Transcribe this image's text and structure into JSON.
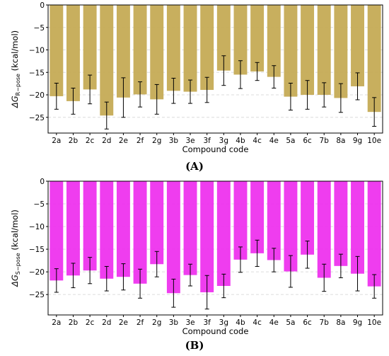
{
  "chart_data": [
    {
      "type": "bar",
      "panel_label": "(A)",
      "xlabel": "Compound code",
      "ylabel": "ΔG",
      "ylabel_sub": "R−pose",
      "ylabel_unit": "(kcal/mol)",
      "ylim": [
        -28.5,
        0
      ],
      "yticks": [
        0,
        -5,
        -10,
        -15,
        -20,
        -25
      ],
      "grid": true,
      "bar_color": "#c5ab55",
      "categories": [
        "2a",
        "2b",
        "2c",
        "2d",
        "2e",
        "2f",
        "2g",
        "3b",
        "3e",
        "3f",
        "3g",
        "4b",
        "4c",
        "4e",
        "5a",
        "6c",
        "7b",
        "8a",
        "9g",
        "10e"
      ],
      "values": [
        -20.3,
        -21.4,
        -18.8,
        -24.6,
        -20.6,
        -19.9,
        -21.0,
        -19.1,
        -19.3,
        -18.9,
        -14.6,
        -15.5,
        -14.8,
        -16.0,
        -20.4,
        -20.0,
        -20.0,
        -20.7,
        -18.1,
        -23.8
      ],
      "errors": [
        2.9,
        2.9,
        3.2,
        3.0,
        4.4,
        2.8,
        3.3,
        2.8,
        2.6,
        2.8,
        3.3,
        3.1,
        2.0,
        2.5,
        3.0,
        3.2,
        2.7,
        3.2,
        3.0,
        3.2
      ]
    },
    {
      "type": "bar",
      "panel_label": "(B)",
      "xlabel": "Compound code",
      "ylabel": "ΔG",
      "ylabel_sub": "S−pose",
      "ylabel_unit": "(kcal/mol)",
      "ylim": [
        -29.5,
        0
      ],
      "yticks": [
        0,
        -5,
        -10,
        -15,
        -20,
        -25
      ],
      "grid": true,
      "bar_color": "#ee33ee",
      "categories": [
        "2a",
        "2b",
        "2c",
        "2d",
        "2e",
        "2f",
        "2g",
        "3b",
        "3e",
        "3f",
        "3g",
        "4b",
        "4c",
        "4e",
        "5a",
        "6c",
        "7b",
        "8a",
        "9g",
        "10e"
      ],
      "values": [
        -21.9,
        -20.8,
        -19.7,
        -21.5,
        -21.1,
        -22.6,
        -18.3,
        -24.7,
        -20.7,
        -24.5,
        -23.1,
        -17.3,
        -15.9,
        -17.4,
        -19.9,
        -16.2,
        -21.3,
        -18.7,
        -20.4,
        -23.2
      ],
      "errors": [
        2.6,
        2.7,
        2.9,
        2.7,
        2.9,
        3.2,
        2.8,
        3.1,
        2.4,
        3.7,
        2.6,
        2.8,
        2.9,
        2.6,
        3.5,
        3.0,
        3.0,
        2.6,
        3.8,
        2.6
      ]
    }
  ]
}
